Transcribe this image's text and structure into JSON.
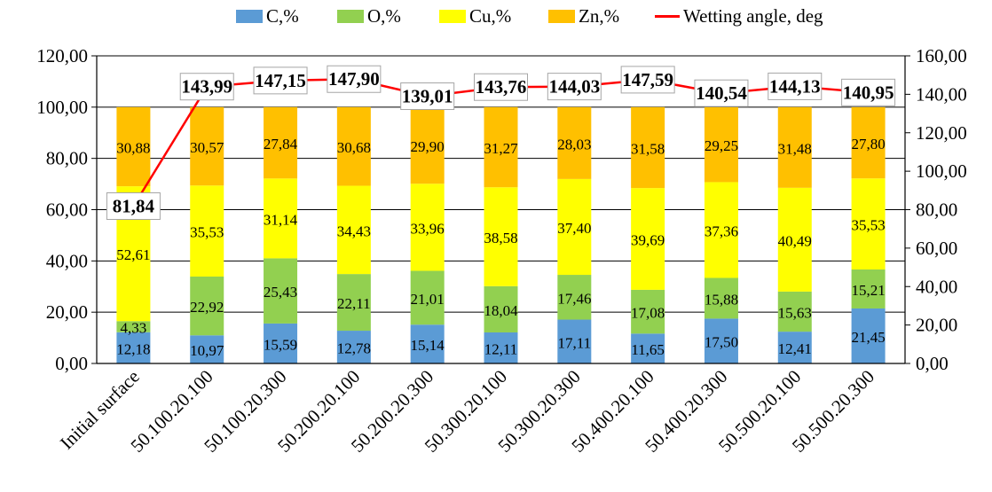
{
  "chart_data": {
    "type": "bar",
    "stacked": true,
    "categories": [
      "Initial surface",
      "50.100.20.100",
      "50.100.20.300",
      "50.200.20.100",
      "50.200.20.300",
      "50.300.20.100",
      "50.300.20.300",
      "50.400.20.100",
      "50.400.20.300",
      "50.500.20.100",
      "50.500.20.300"
    ],
    "series": [
      {
        "name": "C,%",
        "color": "#5b9bd5",
        "values": [
          12.18,
          10.97,
          15.59,
          12.78,
          15.14,
          12.11,
          17.11,
          11.65,
          17.5,
          12.41,
          21.45
        ],
        "labels": [
          "12,18",
          "10,97",
          "15,59",
          "12,78",
          "15,14",
          "12,11",
          "17,11",
          "11,65",
          "17,50",
          "12,41",
          "21,45"
        ]
      },
      {
        "name": "O,%",
        "color": "#92d050",
        "values": [
          4.33,
          22.92,
          25.43,
          22.11,
          21.01,
          18.04,
          17.46,
          17.08,
          15.88,
          15.63,
          15.21
        ],
        "labels": [
          "4,33",
          "22,92",
          "25,43",
          "22,11",
          "21,01",
          "18,04",
          "17,46",
          "17,08",
          "15,88",
          "15,63",
          "15,21"
        ]
      },
      {
        "name": "Cu,%",
        "color": "#ffff00",
        "values": [
          52.61,
          35.53,
          31.14,
          34.43,
          33.96,
          38.58,
          37.4,
          39.69,
          37.36,
          40.49,
          35.53
        ],
        "labels": [
          "52,61",
          "35,53",
          "31,14",
          "34,43",
          "33,96",
          "38,58",
          "37,40",
          "39,69",
          "37,36",
          "40,49",
          "35,53"
        ]
      },
      {
        "name": "Zn,%",
        "color": "#ffc000",
        "values": [
          30.88,
          30.57,
          27.84,
          30.68,
          29.9,
          31.27,
          28.03,
          31.58,
          29.25,
          31.48,
          27.8
        ],
        "labels": [
          "30,88",
          "30,57",
          "27,84",
          "30,68",
          "29,90",
          "31,27",
          "28,03",
          "31,58",
          "29,25",
          "31,48",
          "27,80"
        ]
      }
    ],
    "line": {
      "name": "Wetting angle, deg",
      "color": "#ff0000",
      "axis": "right",
      "values": [
        81.84,
        143.99,
        147.15,
        147.9,
        139.01,
        143.76,
        144.03,
        147.59,
        140.54,
        144.13,
        140.95
      ],
      "labels": [
        "81,84",
        "143,99",
        "147,15",
        "147,90",
        "139,01",
        "143,76",
        "144,03",
        "147,59",
        "140,54",
        "144,13",
        "140,95"
      ]
    },
    "y_left": {
      "min": 0,
      "max": 120,
      "ticks": [
        "0,00",
        "20,00",
        "40,00",
        "60,00",
        "80,00",
        "100,00",
        "120,00"
      ]
    },
    "y_right": {
      "min": 0,
      "max": 160,
      "ticks": [
        "0,00",
        "20,00",
        "40,00",
        "60,00",
        "80,00",
        "100,00",
        "120,00",
        "140,00",
        "160,00"
      ]
    },
    "grid": true,
    "legend_position": "top"
  }
}
